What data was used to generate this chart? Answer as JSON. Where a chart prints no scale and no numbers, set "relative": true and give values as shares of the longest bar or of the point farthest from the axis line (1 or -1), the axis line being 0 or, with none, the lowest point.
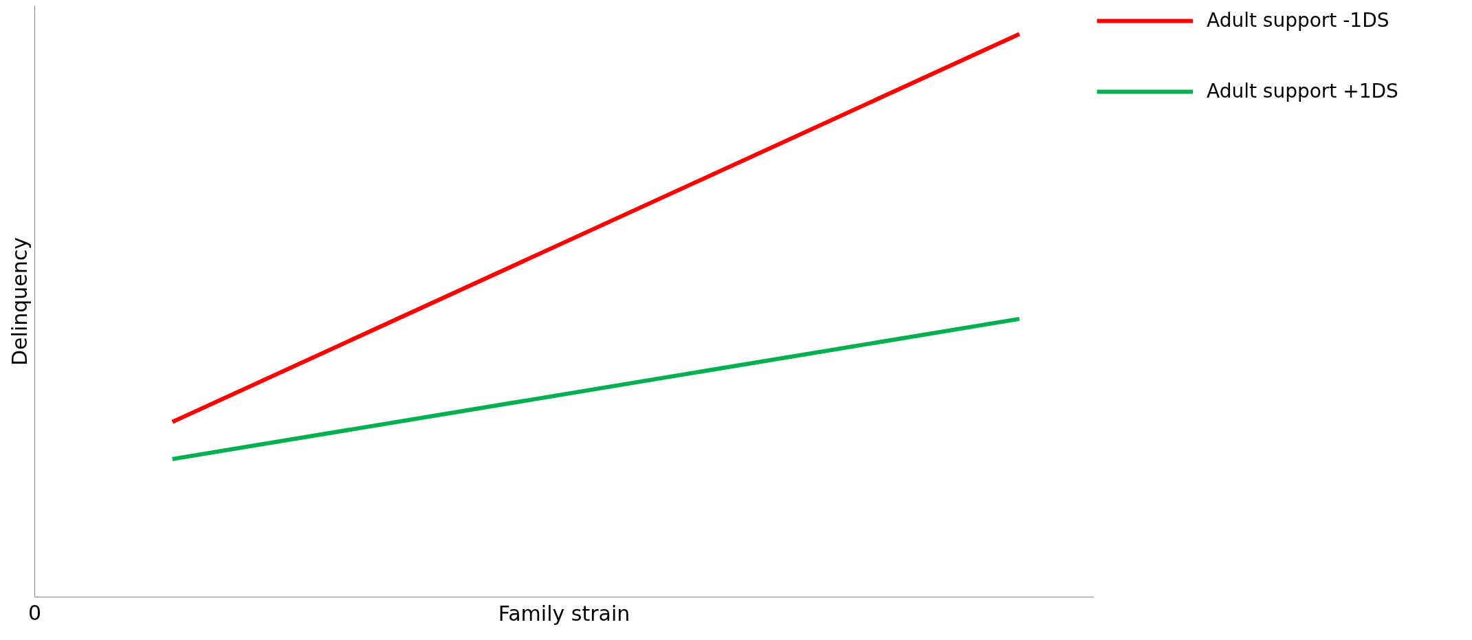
{
  "chart_data": {
    "type": "line",
    "xlabel": "Family strain",
    "ylabel": "Delinquency",
    "relative": true,
    "categories": [
      null,
      null
    ],
    "annotations": [
      "0"
    ],
    "legend": "top right",
    "series": [
      {
        "name": "Adult support -1DS",
        "color": "#ff0000",
        "values": [
          0.311,
          1
        ]
      },
      {
        "name": "Adult support +1DS",
        "color": "#00b050",
        "values": [
          0.245,
          0.494
        ]
      }
    ]
  }
}
